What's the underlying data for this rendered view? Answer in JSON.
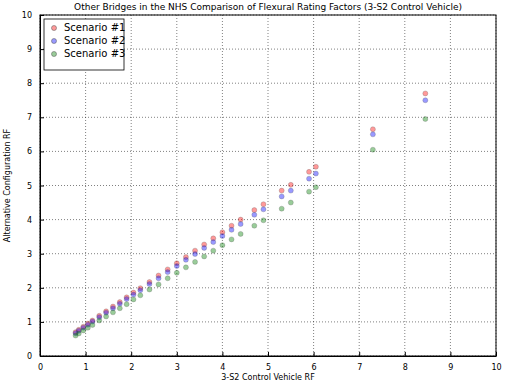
{
  "chart_data": {
    "type": "scatter",
    "title": "Other Bridges in the NHS Comparison of Flexural Rating Factors (3-S2 Control Vehicle)",
    "x_label": "3-S2 Control Vehicle RF",
    "y_label": "Alternative Configuration RF",
    "x": [
      0.78,
      0.85,
      0.95,
      1.05,
      1.15,
      1.3,
      1.45,
      1.6,
      1.75,
      1.9,
      2.05,
      2.2,
      2.4,
      2.6,
      2.8,
      3.0,
      3.2,
      3.4,
      3.6,
      3.8,
      4.0,
      4.2,
      4.4,
      4.7,
      4.9,
      5.3,
      5.5,
      5.9,
      6.05,
      7.3,
      8.45
    ],
    "series": [
      {
        "name": "Scenario #1",
        "color": "#ff0000",
        "marker": "circle",
        "values": [
          0.7,
          0.77,
          0.86,
          0.95,
          1.04,
          1.18,
          1.31,
          1.45,
          1.58,
          1.72,
          1.86,
          1.99,
          2.17,
          2.36,
          2.54,
          2.72,
          2.9,
          3.09,
          3.27,
          3.45,
          3.63,
          3.82,
          4.0,
          4.28,
          4.45,
          4.85,
          5.02,
          5.4,
          5.55,
          6.65,
          7.7
        ]
      },
      {
        "name": "Scenario #2",
        "color": "#0000ff",
        "marker": "circle",
        "values": [
          0.67,
          0.74,
          0.83,
          0.92,
          1.01,
          1.14,
          1.27,
          1.4,
          1.53,
          1.67,
          1.8,
          1.93,
          2.11,
          2.28,
          2.46,
          2.64,
          2.82,
          2.99,
          3.17,
          3.34,
          3.52,
          3.7,
          3.87,
          4.14,
          4.3,
          4.68,
          4.85,
          5.2,
          5.35,
          6.5,
          7.5
        ]
      },
      {
        "name": "Scenario #3",
        "color": "#008000",
        "marker": "circle",
        "values": [
          0.6,
          0.66,
          0.75,
          0.83,
          0.91,
          1.04,
          1.16,
          1.28,
          1.4,
          1.52,
          1.66,
          1.78,
          1.95,
          2.1,
          2.28,
          2.44,
          2.6,
          2.76,
          2.92,
          3.09,
          3.25,
          3.42,
          3.58,
          3.82,
          3.98,
          4.32,
          4.5,
          4.82,
          4.95,
          6.05,
          6.95
        ]
      }
    ],
    "xlim": [
      0,
      10
    ],
    "ylim": [
      0,
      10
    ],
    "xticks": [
      0,
      1,
      2,
      3,
      4,
      5,
      6,
      7,
      8,
      9,
      10
    ],
    "yticks": [
      0,
      1,
      2,
      3,
      4,
      5,
      6,
      7,
      8,
      9,
      10
    ],
    "grid": true,
    "legend": "upper left"
  }
}
